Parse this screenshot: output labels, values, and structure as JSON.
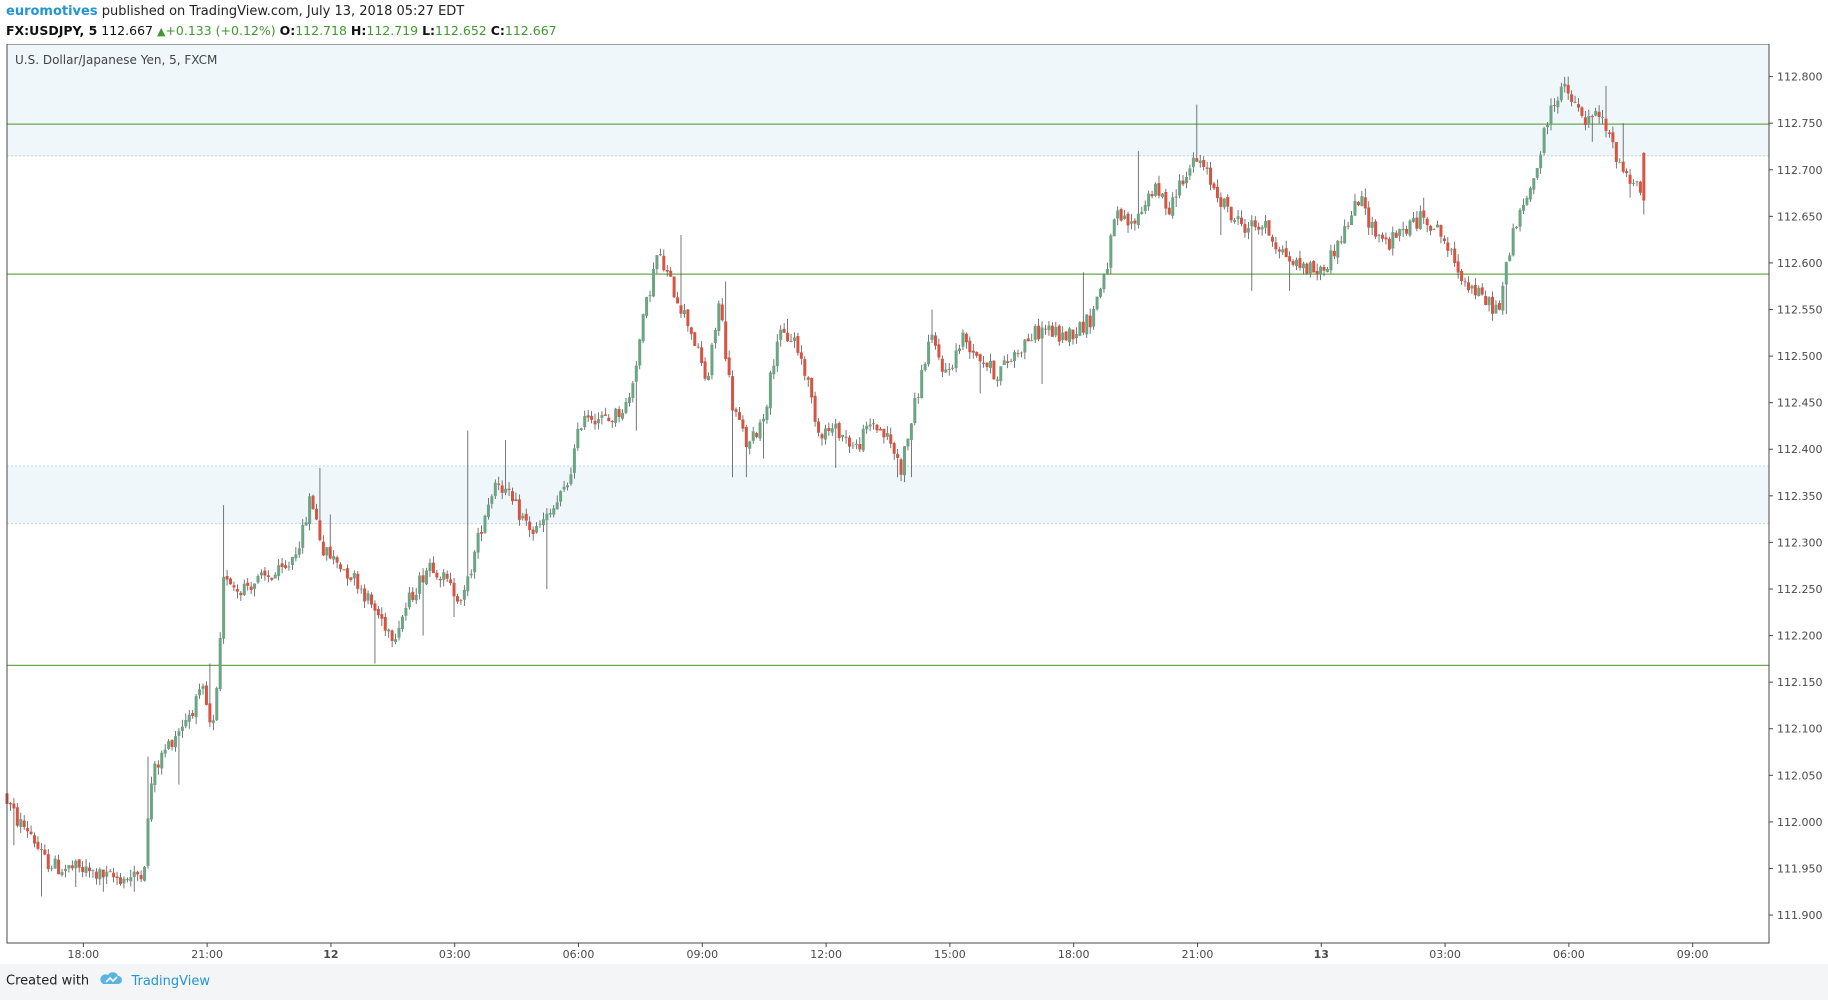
{
  "header": {
    "author": "euromotives",
    "published": "published on TradingView.com, July 13, 2018 05:27 EDT",
    "symbol": "FX:USDJPY, 5",
    "last": "112.667",
    "change": "+0.133 (+0.12%)",
    "o_label": "O:",
    "o_value": "112.718",
    "h_label": "H:",
    "h_value": "112.719",
    "l_label": "L:",
    "l_value": "112.652",
    "c_label": "C:",
    "c_value": "112.667"
  },
  "footer": {
    "created_with": "Created with",
    "brand": "TradingView"
  },
  "colors": {
    "up": "#6ba583",
    "down": "#d75442",
    "level_line": "#6aa84f",
    "zone_fill": "#f0f7fb",
    "zone_border": "#a9cbe0",
    "axis_text": "#4a4a4a"
  },
  "chart_data": {
    "type": "candlestick",
    "title": "U.S. Dollar/Japanese Yen, 5, FXCM",
    "price_axis": {
      "ylim": [
        111.87,
        112.835
      ],
      "ticks": [
        "112.800",
        "112.750",
        "112.700",
        "112.650",
        "112.600",
        "112.550",
        "112.500",
        "112.450",
        "112.400",
        "112.350",
        "112.300",
        "112.250",
        "112.200",
        "112.150",
        "112.100",
        "112.050",
        "112.000",
        "111.950",
        "111.900"
      ]
    },
    "time_axis": {
      "range_hours": [
        -1.85,
        40.85
      ],
      "ticks": [
        {
          "label": "18:00",
          "h": 0,
          "bold": false
        },
        {
          "label": "21:00",
          "h": 3,
          "bold": false
        },
        {
          "label": "12",
          "h": 6,
          "bold": true
        },
        {
          "label": "03:00",
          "h": 9,
          "bold": false
        },
        {
          "label": "06:00",
          "h": 12,
          "bold": false
        },
        {
          "label": "09:00",
          "h": 15,
          "bold": false
        },
        {
          "label": "12:00",
          "h": 18,
          "bold": false
        },
        {
          "label": "15:00",
          "h": 21,
          "bold": false
        },
        {
          "label": "18:00",
          "h": 24,
          "bold": false
        },
        {
          "label": "21:00",
          "h": 27,
          "bold": false
        },
        {
          "label": "13",
          "h": 30,
          "bold": true
        },
        {
          "label": "03:00",
          "h": 33,
          "bold": false
        },
        {
          "label": "06:00",
          "h": 36,
          "bold": false
        },
        {
          "label": "09:00",
          "h": 39,
          "bold": false
        }
      ]
    },
    "horizontal_levels": [
      112.749,
      112.588,
      112.168
    ],
    "zones": [
      {
        "from": 112.715,
        "to": 112.835
      },
      {
        "from": 112.32,
        "to": 112.382
      }
    ],
    "path_anchors": [
      [
        -1.85,
        112.03
      ],
      [
        -1.5,
        112.0
      ],
      [
        -1.2,
        111.99
      ],
      [
        -0.9,
        111.96
      ],
      [
        -0.5,
        111.95
      ],
      [
        -0.1,
        111.95
      ],
      [
        0.7,
        111.94
      ],
      [
        1.3,
        111.94
      ],
      [
        1.55,
        111.95
      ],
      [
        1.75,
        112.05
      ],
      [
        2.1,
        112.08
      ],
      [
        2.7,
        112.12
      ],
      [
        3.0,
        112.14
      ],
      [
        3.2,
        112.09
      ],
      [
        3.35,
        112.15
      ],
      [
        3.5,
        112.27
      ],
      [
        3.8,
        112.25
      ],
      [
        4.4,
        112.26
      ],
      [
        5.0,
        112.27
      ],
      [
        5.4,
        112.31
      ],
      [
        5.6,
        112.35
      ],
      [
        5.9,
        112.29
      ],
      [
        6.2,
        112.28
      ],
      [
        6.7,
        112.26
      ],
      [
        7.1,
        112.23
      ],
      [
        7.6,
        112.2
      ],
      [
        8.0,
        112.24
      ],
      [
        8.5,
        112.28
      ],
      [
        9.0,
        112.25
      ],
      [
        9.3,
        112.24
      ],
      [
        9.8,
        112.33
      ],
      [
        10.1,
        112.37
      ],
      [
        10.5,
        112.34
      ],
      [
        11.0,
        112.31
      ],
      [
        11.4,
        112.33
      ],
      [
        11.8,
        112.36
      ],
      [
        12.2,
        112.44
      ],
      [
        12.8,
        112.43
      ],
      [
        13.3,
        112.45
      ],
      [
        13.7,
        112.55
      ],
      [
        14.0,
        112.61
      ],
      [
        14.4,
        112.57
      ],
      [
        14.8,
        112.53
      ],
      [
        15.2,
        112.47
      ],
      [
        15.5,
        112.56
      ],
      [
        15.8,
        112.45
      ],
      [
        16.2,
        112.4
      ],
      [
        16.6,
        112.44
      ],
      [
        16.9,
        112.52
      ],
      [
        17.3,
        112.52
      ],
      [
        17.6,
        112.48
      ],
      [
        17.9,
        112.42
      ],
      [
        18.4,
        112.42
      ],
      [
        18.8,
        112.4
      ],
      [
        19.2,
        112.43
      ],
      [
        19.6,
        112.41
      ],
      [
        19.9,
        112.38
      ],
      [
        20.2,
        112.44
      ],
      [
        20.6,
        112.52
      ],
      [
        21.0,
        112.48
      ],
      [
        21.4,
        112.52
      ],
      [
        21.8,
        112.5
      ],
      [
        22.2,
        112.48
      ],
      [
        22.6,
        112.5
      ],
      [
        23.0,
        112.52
      ],
      [
        23.4,
        112.53
      ],
      [
        23.8,
        112.52
      ],
      [
        24.2,
        112.53
      ],
      [
        24.5,
        112.54
      ],
      [
        24.9,
        112.6
      ],
      [
        25.1,
        112.65
      ],
      [
        25.5,
        112.64
      ],
      [
        26.0,
        112.68
      ],
      [
        26.4,
        112.66
      ],
      [
        26.8,
        112.7
      ],
      [
        27.1,
        112.71
      ],
      [
        27.5,
        112.68
      ],
      [
        27.9,
        112.65
      ],
      [
        28.2,
        112.64
      ],
      [
        28.7,
        112.64
      ],
      [
        29.0,
        112.62
      ],
      [
        29.4,
        112.6
      ],
      [
        30.1,
        112.59
      ],
      [
        30.6,
        112.63
      ],
      [
        31.0,
        112.67
      ],
      [
        31.3,
        112.64
      ],
      [
        31.7,
        112.62
      ],
      [
        32.2,
        112.64
      ],
      [
        32.6,
        112.65
      ],
      [
        33.0,
        112.63
      ],
      [
        33.3,
        112.6
      ],
      [
        33.6,
        112.58
      ],
      [
        34.0,
        112.56
      ],
      [
        34.4,
        112.55
      ],
      [
        34.7,
        112.63
      ],
      [
        35.0,
        112.66
      ],
      [
        35.3,
        112.7
      ],
      [
        35.6,
        112.76
      ],
      [
        35.9,
        112.79
      ],
      [
        36.2,
        112.77
      ],
      [
        36.5,
        112.75
      ],
      [
        36.8,
        112.76
      ],
      [
        37.1,
        112.73
      ],
      [
        37.4,
        112.7
      ],
      [
        37.8,
        112.68
      ]
    ],
    "spikes": [
      [
        -1.7,
        111.975
      ],
      [
        -1.0,
        111.92
      ],
      [
        -0.2,
        111.93
      ],
      [
        0.5,
        111.925
      ],
      [
        1.2,
        111.925
      ],
      [
        1.6,
        112.07
      ],
      [
        2.3,
        112.04
      ],
      [
        2.6,
        112.12
      ],
      [
        3.05,
        112.17
      ],
      [
        3.4,
        112.34
      ],
      [
        5.7,
        112.38
      ],
      [
        6.0,
        112.33
      ],
      [
        7.1,
        112.17
      ],
      [
        8.2,
        112.2
      ],
      [
        9.0,
        112.22
      ],
      [
        9.3,
        112.42
      ],
      [
        10.2,
        112.41
      ],
      [
        11.2,
        112.25
      ],
      [
        12.0,
        112.41
      ],
      [
        13.4,
        112.42
      ],
      [
        14.5,
        112.63
      ],
      [
        15.6,
        112.58
      ],
      [
        15.7,
        112.37
      ],
      [
        16.1,
        112.37
      ],
      [
        16.5,
        112.39
      ],
      [
        17.1,
        112.54
      ],
      [
        18.2,
        112.38
      ],
      [
        19.7,
        112.37
      ],
      [
        20.1,
        112.37
      ],
      [
        20.6,
        112.55
      ],
      [
        21.7,
        112.46
      ],
      [
        23.2,
        112.47
      ],
      [
        24.2,
        112.59
      ],
      [
        25.6,
        112.72
      ],
      [
        26.5,
        112.66
      ],
      [
        26.95,
        112.77
      ],
      [
        27.6,
        112.63
      ],
      [
        28.3,
        112.57
      ],
      [
        29.2,
        112.57
      ],
      [
        31.1,
        112.68
      ],
      [
        32.5,
        112.67
      ],
      [
        34.2,
        112.56
      ],
      [
        34.5,
        112.545
      ],
      [
        35.3,
        112.72
      ],
      [
        35.8,
        112.79
      ],
      [
        36.0,
        112.8
      ],
      [
        36.6,
        112.73
      ],
      [
        36.9,
        112.79
      ],
      [
        37.3,
        112.75
      ],
      [
        37.5,
        112.67
      ],
      [
        37.8,
        112.655
      ]
    ],
    "last_candle": {
      "open": 112.718,
      "high": 112.719,
      "low": 112.652,
      "close": 112.667
    }
  }
}
